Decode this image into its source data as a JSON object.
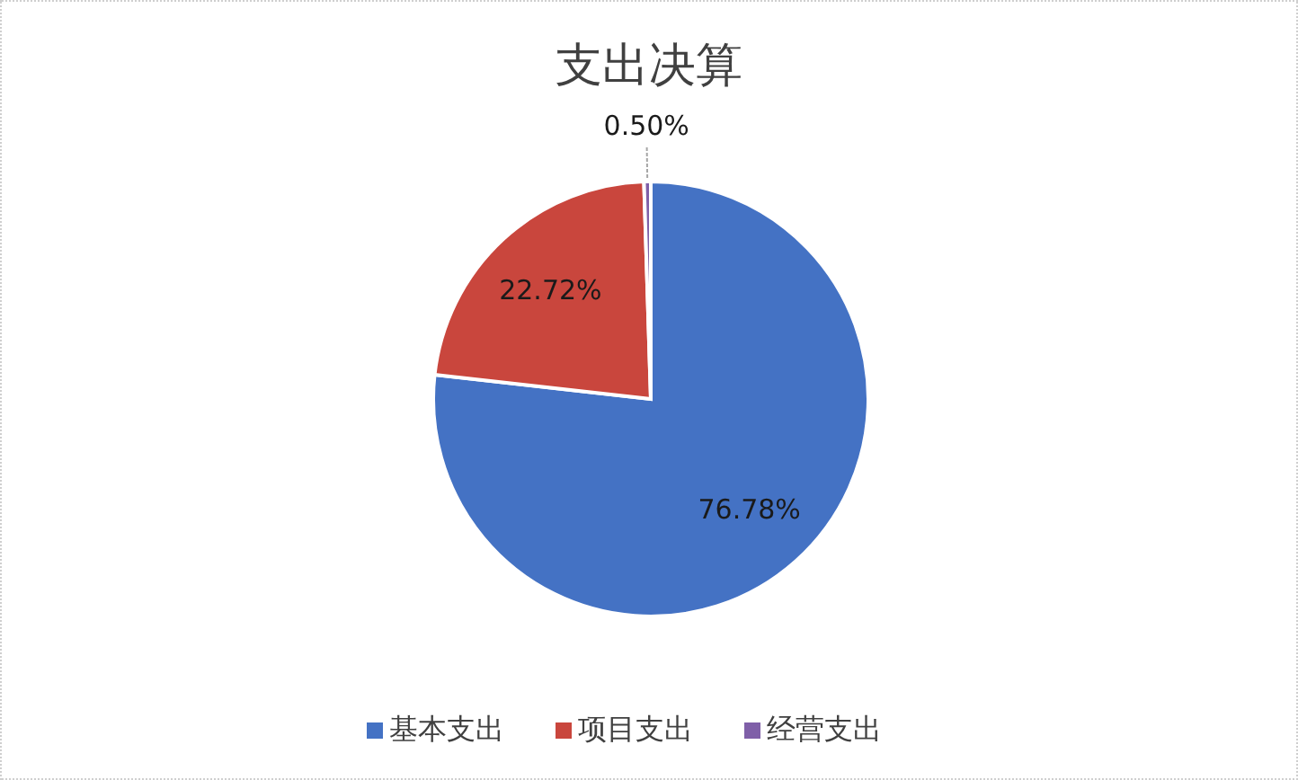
{
  "chart_data": {
    "type": "pie",
    "title": "支出决算",
    "categories": [
      "基本支出",
      "项目支出",
      "经营支出"
    ],
    "values": [
      76.78,
      22.72,
      0.5
    ],
    "colors": [
      "#4472c4",
      "#c9463d",
      "#7f5fa8"
    ],
    "value_labels": [
      "76.78%",
      "22.72%",
      "0.50%"
    ],
    "legend": "bottom"
  }
}
